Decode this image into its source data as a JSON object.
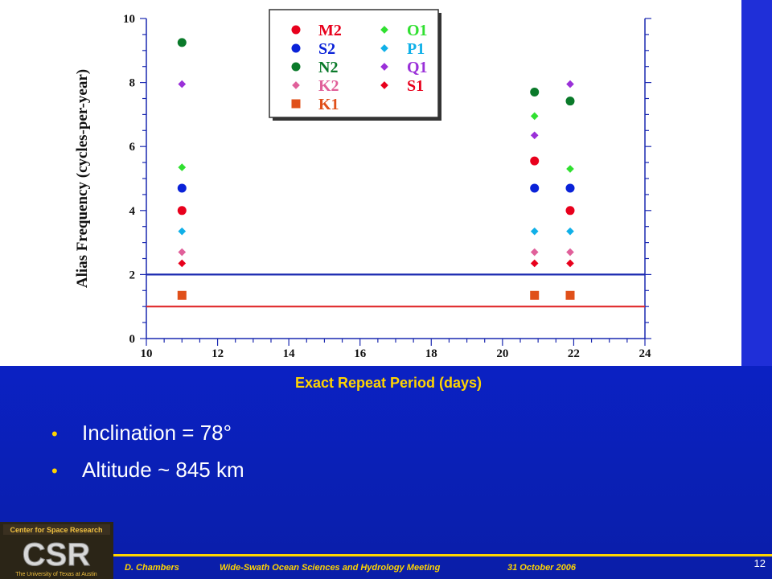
{
  "slide": {
    "x_caption": "Exact Repeat Period (days)",
    "bullets": [
      "Inclination = 78°",
      "Altitude ~ 845 km"
    ],
    "footer": {
      "author": "D. Chambers",
      "meeting": "Wide-Swath Ocean Sciences and Hydrology Meeting",
      "date": "31 October 2006"
    },
    "page_number": "12",
    "logo": {
      "top_text": "Center for Space Research",
      "main_text": "CSR",
      "bottom_text": "The University of Texas at Austin"
    }
  },
  "colors": {
    "background": "#0b22c9",
    "accent": "#ffd400",
    "text": "#ffffff"
  },
  "chart_data": {
    "type": "scatter",
    "xlabel": "",
    "ylabel": "Alias Frequency (cycles-per-year)",
    "xlim": [
      10,
      24
    ],
    "ylim": [
      0,
      10
    ],
    "xticks": [
      "10",
      "12",
      "14",
      "16",
      "18",
      "20",
      "22",
      "24"
    ],
    "yticks": [
      "0",
      "2",
      "4",
      "6",
      "8",
      "10"
    ],
    "legend_position": "top-center",
    "series": [
      {
        "name": "M2",
        "color": "#e8001c",
        "marker": "circle",
        "points": [
          [
            11,
            4.0
          ],
          [
            20.9,
            5.55
          ],
          [
            21.9,
            4.0
          ]
        ]
      },
      {
        "name": "S2",
        "color": "#0a22d8",
        "marker": "circle",
        "points": [
          [
            11,
            4.7
          ],
          [
            20.9,
            4.7
          ],
          [
            21.9,
            4.7
          ]
        ]
      },
      {
        "name": "N2",
        "color": "#0a7a2a",
        "marker": "circle",
        "points": [
          [
            11,
            9.25
          ],
          [
            20.9,
            7.7
          ],
          [
            21.9,
            7.42
          ]
        ]
      },
      {
        "name": "K2",
        "color": "#e0609a",
        "marker": "diamond",
        "points": [
          [
            11,
            2.7
          ],
          [
            20.9,
            2.7
          ],
          [
            21.9,
            2.7
          ]
        ]
      },
      {
        "name": "K1",
        "color": "#e0501a",
        "marker": "square",
        "points": [
          [
            11,
            1.35
          ],
          [
            20.9,
            1.35
          ],
          [
            21.9,
            1.35
          ]
        ]
      },
      {
        "name": "O1",
        "color": "#30e030",
        "marker": "diamond",
        "points": [
          [
            11,
            5.35
          ],
          [
            20.9,
            6.95
          ],
          [
            21.9,
            5.3
          ]
        ]
      },
      {
        "name": "P1",
        "color": "#10b0e8",
        "marker": "diamond",
        "points": [
          [
            11,
            3.35
          ],
          [
            20.9,
            3.35
          ],
          [
            21.9,
            3.35
          ]
        ]
      },
      {
        "name": "Q1",
        "color": "#9a30d8",
        "marker": "diamond",
        "points": [
          [
            11,
            7.95
          ],
          [
            20.9,
            6.35
          ],
          [
            21.9,
            7.95
          ]
        ]
      },
      {
        "name": "S1",
        "color": "#e8001c",
        "marker": "diamond",
        "points": [
          [
            11,
            2.35
          ],
          [
            20.9,
            2.35
          ],
          [
            21.9,
            2.35
          ]
        ]
      }
    ],
    "hlines": [
      {
        "y": 2,
        "color": "#1a28b0"
      },
      {
        "y": 1,
        "color": "#e0282a"
      }
    ]
  }
}
